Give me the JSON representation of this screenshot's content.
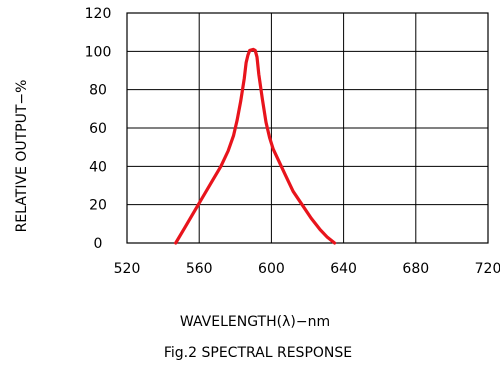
{
  "chart_data": {
    "type": "line",
    "title": "Fig.2 SPECTRAL RESPONSE",
    "xlabel": "WAVELENGTH(λ)−nm",
    "ylabel": "RELATIVE OUTPUT−%",
    "xlim": [
      520,
      720
    ],
    "ylim": [
      0,
      120
    ],
    "x_ticks": [
      "520",
      "560",
      "600",
      "640",
      "680",
      "720"
    ],
    "y_ticks": [
      "0",
      "20",
      "40",
      "60",
      "80",
      "100",
      "120"
    ],
    "grid": true,
    "series": [
      {
        "color": "#e8141c",
        "points": [
          [
            547,
            0
          ],
          [
            552,
            8
          ],
          [
            557,
            16
          ],
          [
            562,
            24
          ],
          [
            567,
            32
          ],
          [
            572,
            40
          ],
          [
            576,
            48
          ],
          [
            579,
            56
          ],
          [
            581,
            64
          ],
          [
            583,
            74
          ],
          [
            585,
            86
          ],
          [
            586,
            94
          ],
          [
            587,
            98
          ],
          [
            588,
            100.5
          ],
          [
            590,
            101
          ],
          [
            591,
            100.5
          ],
          [
            592,
            97
          ],
          [
            593,
            88
          ],
          [
            595,
            75
          ],
          [
            597,
            63
          ],
          [
            599,
            55
          ],
          [
            601,
            49
          ],
          [
            604,
            43
          ],
          [
            608,
            35
          ],
          [
            612,
            27
          ],
          [
            617,
            20
          ],
          [
            622,
            13
          ],
          [
            627,
            7
          ],
          [
            631,
            3
          ],
          [
            635,
            0
          ]
        ]
      }
    ]
  }
}
